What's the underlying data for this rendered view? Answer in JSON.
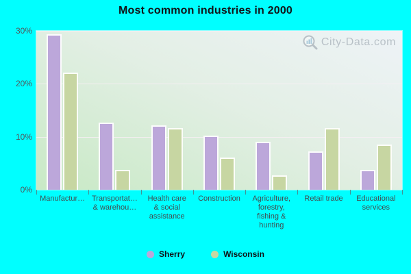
{
  "page": {
    "background": "#00FFFF"
  },
  "chart_data": {
    "type": "bar",
    "title": "Most common industries in 2000",
    "categories": [
      "Manufactur…",
      "Transportat…\n& warehou…",
      "Health care\n& social\nassistance",
      "Construction",
      "Agriculture,\nforestry,\nfishing &\nhunting",
      "Retail trade",
      "Educational\nservices"
    ],
    "series": [
      {
        "name": "Sherry",
        "color": "#BCA7DA",
        "values": [
          29.4,
          12.7,
          12.1,
          10.2,
          9.1,
          7.2,
          3.8
        ]
      },
      {
        "name": "Wisconsin",
        "color": "#C7D6A2",
        "values": [
          22.1,
          3.7,
          11.6,
          6.1,
          2.7,
          11.6,
          8.5
        ]
      }
    ],
    "xlabel": "",
    "ylabel": "",
    "ylim": [
      0,
      30
    ],
    "y_tick_step": 10,
    "y_tick_labels": [
      "0%",
      "10%",
      "20%",
      "30%"
    ],
    "grid": true,
    "legend_position": "bottom"
  },
  "watermark": {
    "text": "City-Data.com"
  }
}
